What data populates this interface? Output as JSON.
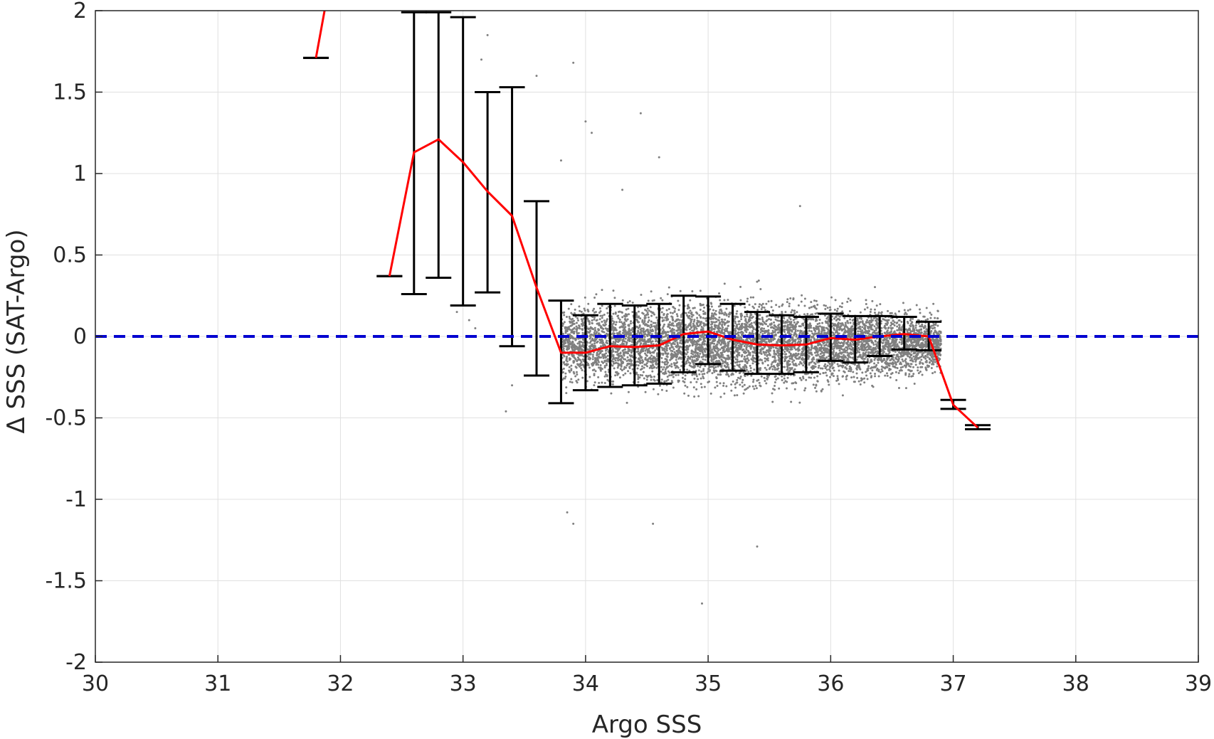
{
  "chart_data": {
    "type": "scatter",
    "xlabel": "Argo SSS",
    "ylabel": "Δ SSS (SAT-Argo)",
    "xlim": [
      30,
      39
    ],
    "ylim": [
      -2,
      2
    ],
    "xticks": [
      "30",
      "31",
      "32",
      "33",
      "34",
      "35",
      "36",
      "37",
      "38",
      "39"
    ],
    "yticks": [
      "-2",
      "-1.5",
      "-1",
      "-0.5",
      "0",
      "0.5",
      "1",
      "1.5",
      "2"
    ],
    "grid": true,
    "colors": {
      "scatter": "#808080",
      "mean_line": "#ff0000",
      "error_bars": "#000000",
      "zero_line": "#0000d0",
      "grid": "#e0e0e0",
      "axes": "#262626"
    },
    "series": [
      {
        "type": "scatter",
        "description_points": "dense cloud of match-ups",
        "clusters": [
          {
            "x_range": [
              33.8,
              36.9
            ],
            "y_center": -0.04,
            "y_spread": 0.22
          }
        ],
        "outliers": [
          {
            "x": 33.2,
            "y": 1.85
          },
          {
            "x": 33.15,
            "y": 1.7
          },
          {
            "x": 33.6,
            "y": 1.6
          },
          {
            "x": 33.9,
            "y": 1.68
          },
          {
            "x": 34.0,
            "y": 1.32
          },
          {
            "x": 34.05,
            "y": 1.25
          },
          {
            "x": 34.45,
            "y": 1.37
          },
          {
            "x": 34.6,
            "y": 1.1
          },
          {
            "x": 33.8,
            "y": 1.08
          },
          {
            "x": 33.35,
            "y": -0.46
          },
          {
            "x": 33.4,
            "y": -0.3
          },
          {
            "x": 33.9,
            "y": -1.15
          },
          {
            "x": 33.85,
            "y": -1.08
          },
          {
            "x": 34.55,
            "y": -1.15
          },
          {
            "x": 35.4,
            "y": -1.29
          },
          {
            "x": 34.95,
            "y": -1.64
          },
          {
            "x": 35.75,
            "y": 0.8
          },
          {
            "x": 34.3,
            "y": 0.9
          },
          {
            "x": 33.05,
            "y": 0.1
          },
          {
            "x": 33.1,
            "y": 0.05
          },
          {
            "x": 32.95,
            "y": 0.15
          }
        ]
      },
      {
        "type": "line",
        "x": [
          31.8,
          31.87,
          null,
          32.4,
          32.6,
          32.8,
          33.0,
          33.2,
          33.4,
          33.6,
          33.8,
          34.0,
          34.2,
          34.4,
          34.6,
          34.8,
          35.0,
          35.2,
          35.4,
          35.6,
          35.8,
          36.0,
          36.2,
          36.4,
          36.6,
          36.8,
          37.0,
          37.2
        ],
        "y": [
          1.71,
          2.0,
          null,
          0.37,
          1.13,
          1.21,
          1.07,
          0.89,
          0.74,
          0.3,
          -0.1,
          -0.1,
          -0.06,
          -0.065,
          -0.055,
          0.015,
          0.03,
          -0.02,
          -0.05,
          -0.055,
          -0.05,
          -0.01,
          -0.02,
          0.0,
          0.015,
          0.0,
          -0.42,
          -0.56
        ]
      },
      {
        "type": "errorbar",
        "x": [
          31.8,
          32.4,
          32.6,
          32.8,
          33.0,
          33.2,
          33.4,
          33.6,
          33.8,
          34.0,
          34.2,
          34.4,
          34.6,
          34.8,
          35.0,
          35.2,
          35.4,
          35.6,
          35.8,
          36.0,
          36.2,
          36.4,
          36.6,
          36.8,
          37.0,
          37.2
        ],
        "low": [
          1.71,
          0.37,
          0.26,
          0.36,
          0.19,
          0.27,
          -0.06,
          -0.24,
          -0.41,
          -0.33,
          -0.31,
          -0.3,
          -0.29,
          -0.22,
          -0.17,
          -0.21,
          -0.23,
          -0.23,
          -0.22,
          -0.15,
          -0.16,
          -0.12,
          -0.08,
          -0.085,
          -0.445,
          -0.57
        ],
        "high": [
          1.71,
          0.37,
          1.99,
          1.99,
          1.96,
          1.5,
          1.53,
          0.83,
          0.22,
          0.13,
          0.2,
          0.19,
          0.2,
          0.25,
          0.245,
          0.2,
          0.15,
          0.13,
          0.12,
          0.14,
          0.125,
          0.125,
          0.12,
          0.09,
          -0.39,
          -0.545
        ]
      },
      {
        "type": "hline",
        "y": 0,
        "style": "dashed"
      }
    ]
  }
}
